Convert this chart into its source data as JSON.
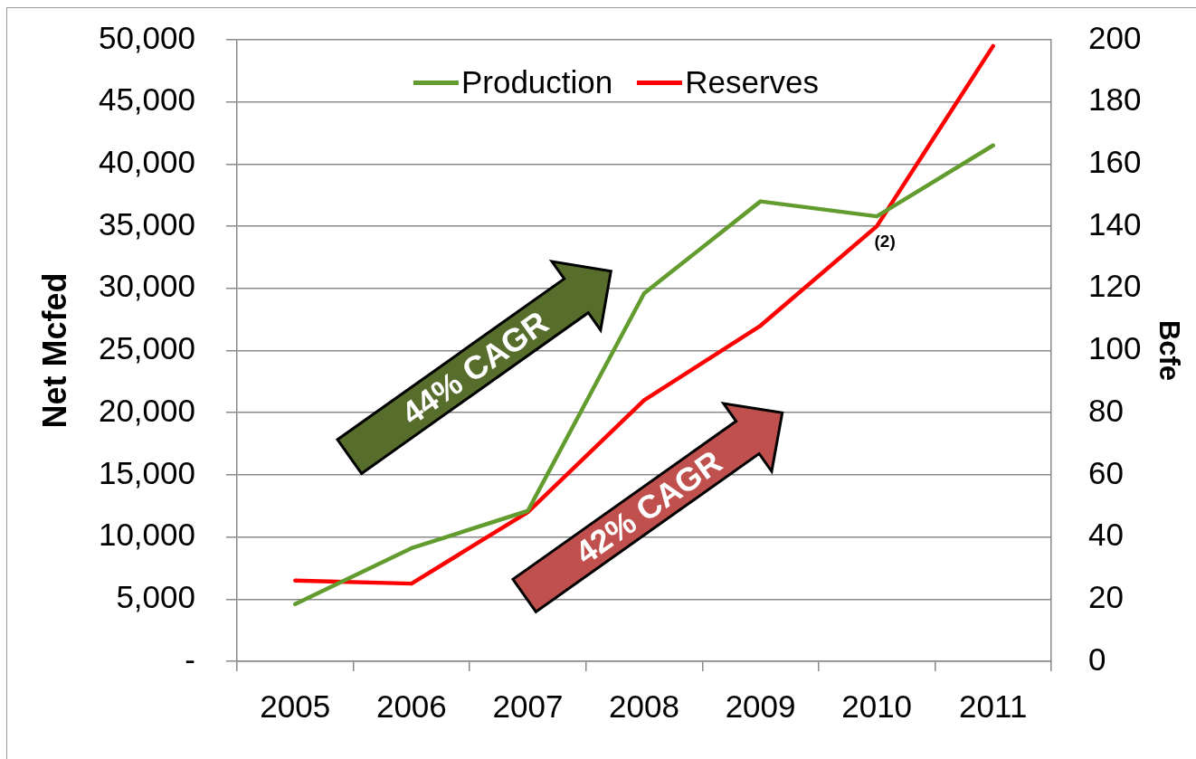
{
  "chart_data": {
    "type": "line",
    "categories": [
      "2005",
      "2006",
      "2007",
      "2008",
      "2009",
      "2010",
      "2011"
    ],
    "series": [
      {
        "name": "Production",
        "color": "#629b2e",
        "values": [
          4600,
          9100,
          12100,
          29600,
          37000,
          35800,
          41500
        ]
      },
      {
        "name": "Reserves",
        "color": "#ff0000",
        "axis": "y2",
        "values": [
          26,
          25,
          48,
          84,
          108,
          140,
          198
        ]
      }
    ],
    "ylabel": "Net Mcfed",
    "y2label": "Bcfe",
    "ylim": [
      0,
      50000
    ],
    "yticks": [
      {
        "value": 0,
        "label": "-"
      },
      {
        "value": 5000,
        "label": "5,000"
      },
      {
        "value": 10000,
        "label": "10,000"
      },
      {
        "value": 15000,
        "label": "15,000"
      },
      {
        "value": 20000,
        "label": "20,000"
      },
      {
        "value": 25000,
        "label": "25,000"
      },
      {
        "value": 30000,
        "label": "30,000"
      },
      {
        "value": 35000,
        "label": "35,000"
      },
      {
        "value": 40000,
        "label": "40,000"
      },
      {
        "value": 45000,
        "label": "45,000"
      },
      {
        "value": 50000,
        "label": "50,000"
      }
    ],
    "y2lim": [
      0,
      200
    ],
    "y2ticks": [
      0,
      20,
      40,
      60,
      80,
      100,
      120,
      140,
      160,
      180,
      200
    ],
    "grid": "y",
    "legend": "top",
    "marker": "none",
    "line_style": "solid",
    "annotations": [
      "44% CAGR",
      "42% CAGR",
      {
        "text": "(2)",
        "x": "2010",
        "y": 35000
      }
    ]
  }
}
